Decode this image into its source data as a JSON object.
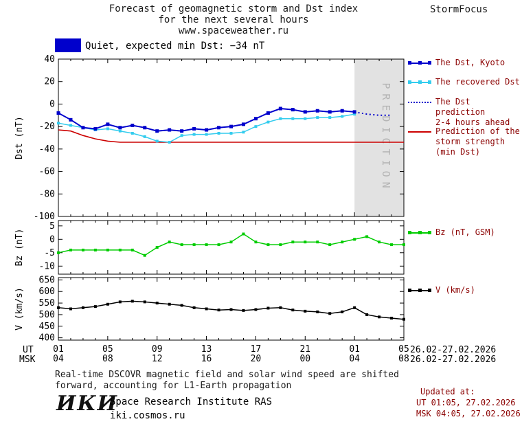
{
  "header": {
    "title_line1": "Forecast of geomagnetic storm and Dst index",
    "title_line2": "for the next several hours",
    "title_line3": "www.spaceweather.ru",
    "brand": "StormFocus"
  },
  "status": {
    "label": "Quiet, expected min Dst: −34 nT"
  },
  "legend": {
    "dst_kyoto": "The Dst, Kyoto",
    "recovered": "The recovered Dst",
    "prediction_line1": "The Dst prediction",
    "prediction_line2": "2-4 hours ahead",
    "storm_line1": "Prediction of the",
    "storm_line2": "storm strength",
    "storm_line3": "(min Dst)",
    "bz": "Bz (nT, GSM)",
    "v": "V (km/s)"
  },
  "axes": {
    "ut_label": "UT",
    "msk_label": "MSK",
    "ut_ticks": [
      "01",
      "05",
      "09",
      "13",
      "17",
      "21",
      "01",
      "05"
    ],
    "msk_ticks": [
      "04",
      "08",
      "12",
      "16",
      "20",
      "00",
      "04",
      "08"
    ],
    "ut_date": "26.02-27.02.2026",
    "msk_date": "26.02-27.02.2026",
    "prediction_band_label": "PREDICTION"
  },
  "footer": {
    "note_line1": "Real-time DSCOVR magnetic field and solar wind speed are shifted",
    "note_line2": "forward, accounting for L1-Earth propagation",
    "updated_label": "Updated at:",
    "updated_ut": "UT  01:05, 27.02.2026",
    "updated_msk": "MSK 04:05, 27.02.2026",
    "logo": "ИКИ",
    "institute": "Space Research Institute RAS",
    "website": "iki.cosmos.ru"
  },
  "colors": {
    "dst_blue": "#0000cc",
    "recovered_cyan": "#33ccee",
    "prediction_red": "#cc0000",
    "bz_green": "#00cc00",
    "v_black": "#000000",
    "band_gray": "#e2e2e2",
    "legend_text": "#8b0000"
  },
  "chart_data": [
    {
      "type": "line",
      "ylabel": "Dst (nT)",
      "ylim": [
        -100,
        40
      ],
      "yticks": [
        40,
        20,
        0,
        -20,
        -40,
        -60,
        -80,
        -100
      ],
      "xlim": [
        1,
        29
      ],
      "xticks": [
        1,
        5,
        9,
        13,
        17,
        21,
        25,
        29
      ],
      "prediction_band": {
        "from": 25,
        "to": 29
      },
      "series": [
        {
          "name": "Prediction of the storm strength (min Dst)",
          "color": "#cc0000",
          "style": "solid",
          "width": 1.6,
          "x": [
            1,
            2,
            3,
            4,
            5,
            6,
            7,
            8,
            9,
            10,
            11,
            12,
            13,
            14,
            15,
            16,
            17,
            18,
            19,
            20,
            21,
            22,
            23,
            24,
            25,
            26,
            27,
            28,
            29
          ],
          "values": [
            -23,
            -24,
            -28,
            -31,
            -33,
            -34,
            -34,
            -34,
            -34,
            -34,
            -34,
            -34,
            -34,
            -34,
            -34,
            -34,
            -34,
            -34,
            -34,
            -34,
            -34,
            -34,
            -34,
            -34,
            -34,
            -34,
            -34,
            -34,
            -34
          ]
        },
        {
          "name": "The recovered Dst",
          "color": "#33ccee",
          "style": "solid",
          "width": 1.5,
          "marker": "square",
          "marker_size": 4,
          "x": [
            1,
            2,
            3,
            4,
            5,
            6,
            7,
            8,
            9,
            10,
            11,
            12,
            13,
            14,
            15,
            16,
            17,
            18,
            19,
            20,
            21,
            22,
            23,
            24,
            25
          ],
          "values": [
            -17,
            -19,
            -21,
            -23,
            -22,
            -24,
            -26,
            -29,
            -33,
            -34,
            -28,
            -27,
            -27,
            -26,
            -26,
            -25,
            -20,
            -16,
            -13,
            -13,
            -13,
            -12,
            -12,
            -11,
            -9
          ]
        },
        {
          "name": "The Dst, Kyoto",
          "color": "#0000cc",
          "style": "solid",
          "width": 2,
          "marker": "square",
          "marker_size": 5,
          "x": [
            1,
            2,
            3,
            4,
            5,
            6,
            7,
            8,
            9,
            10,
            11,
            12,
            13,
            14,
            15,
            16,
            17,
            18,
            19,
            20,
            21,
            22,
            23,
            24,
            25
          ],
          "values": [
            -8,
            -14,
            -21,
            -22,
            -18,
            -21,
            -19,
            -21,
            -24,
            -23,
            -24,
            -22,
            -23,
            -21,
            -20,
            -18,
            -13,
            -8,
            -4,
            -5,
            -7,
            -6,
            -7,
            -6,
            -7
          ]
        },
        {
          "name": "The Dst prediction 2-4 hours ahead",
          "color": "#0000cc",
          "style": "dotted",
          "width": 2,
          "x": [
            25,
            26,
            27,
            28
          ],
          "values": [
            -7,
            -9,
            -10,
            -10
          ]
        }
      ]
    },
    {
      "type": "line",
      "ylabel": "Bz (nT)",
      "ylim": [
        -13,
        7
      ],
      "yticks": [
        5,
        0,
        -5,
        -10
      ],
      "xlim": [
        1,
        29
      ],
      "xticks": [
        1,
        5,
        9,
        13,
        17,
        21,
        25,
        29
      ],
      "series": [
        {
          "name": "Bz (nT, GSM)",
          "color": "#00cc00",
          "style": "solid",
          "width": 1.5,
          "marker": "square",
          "marker_size": 4,
          "x": [
            1,
            2,
            3,
            4,
            5,
            6,
            7,
            8,
            9,
            10,
            11,
            12,
            13,
            14,
            15,
            16,
            17,
            18,
            19,
            20,
            21,
            22,
            23,
            24,
            25,
            26,
            27,
            28,
            29
          ],
          "values": [
            -5,
            -4,
            -4,
            -4,
            -4,
            -4,
            -4,
            -6,
            -3,
            -1,
            -2,
            -2,
            -2,
            -2,
            -1,
            2,
            -1,
            -2,
            -2,
            -1,
            -1,
            -1,
            -2,
            -1,
            0,
            1,
            -1,
            -2,
            -2
          ]
        }
      ]
    },
    {
      "type": "line",
      "ylabel": "V (km/s)",
      "ylim": [
        390,
        660
      ],
      "yticks": [
        650,
        600,
        550,
        500,
        450,
        400
      ],
      "xlim": [
        1,
        29
      ],
      "xticks": [
        1,
        5,
        9,
        13,
        17,
        21,
        25,
        29
      ],
      "series": [
        {
          "name": "V (km/s)",
          "color": "#000000",
          "style": "solid",
          "width": 1.5,
          "marker": "square",
          "marker_size": 4,
          "x": [
            1,
            2,
            3,
            4,
            5,
            6,
            7,
            8,
            9,
            10,
            11,
            12,
            13,
            14,
            15,
            16,
            17,
            18,
            19,
            20,
            21,
            22,
            23,
            24,
            25,
            26,
            27,
            28,
            29
          ],
          "values": [
            530,
            525,
            530,
            535,
            545,
            555,
            558,
            555,
            550,
            545,
            540,
            530,
            525,
            520,
            522,
            518,
            522,
            528,
            530,
            520,
            515,
            512,
            505,
            512,
            530,
            500,
            490,
            485,
            480
          ]
        }
      ]
    }
  ]
}
